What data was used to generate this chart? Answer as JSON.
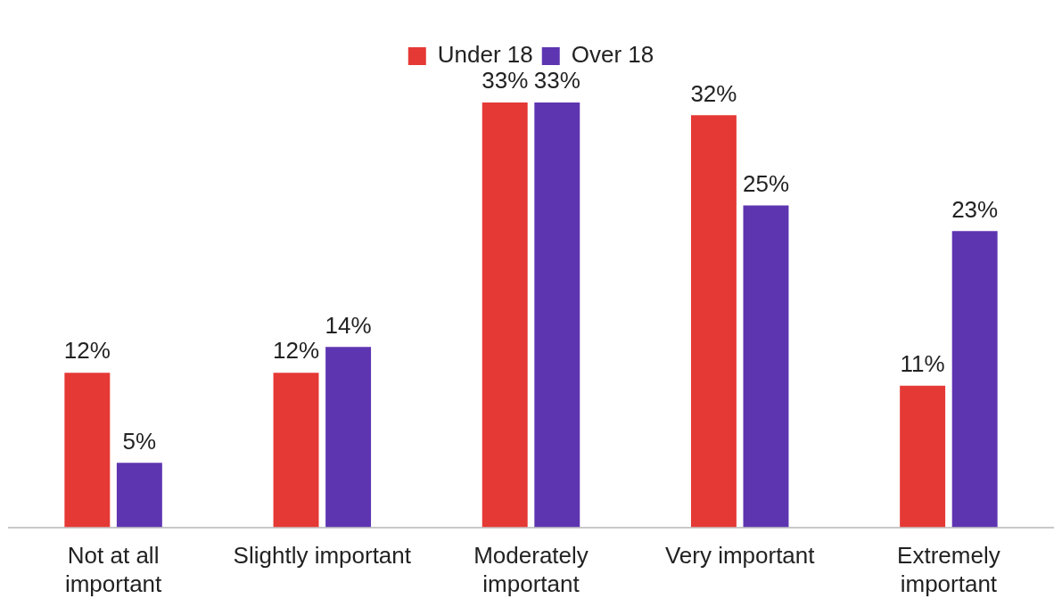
{
  "chart_data": {
    "type": "bar",
    "categories": [
      "Not at all important",
      "Slightly important",
      "Moderately important",
      "Very important",
      "Extremely important"
    ],
    "series": [
      {
        "name": "Under 18",
        "color": "#e53935",
        "values": [
          12,
          12,
          33,
          32,
          11
        ],
        "value_labels": [
          "12%",
          "12%",
          "33%",
          "32%",
          "11%"
        ]
      },
      {
        "name": "Over 18",
        "color": "#5e35b1",
        "values": [
          5,
          14,
          33,
          25,
          23
        ],
        "value_labels": [
          "5%",
          "14%",
          "33%",
          "25%",
          "23%"
        ]
      }
    ],
    "legend": "top",
    "grid": false
  }
}
